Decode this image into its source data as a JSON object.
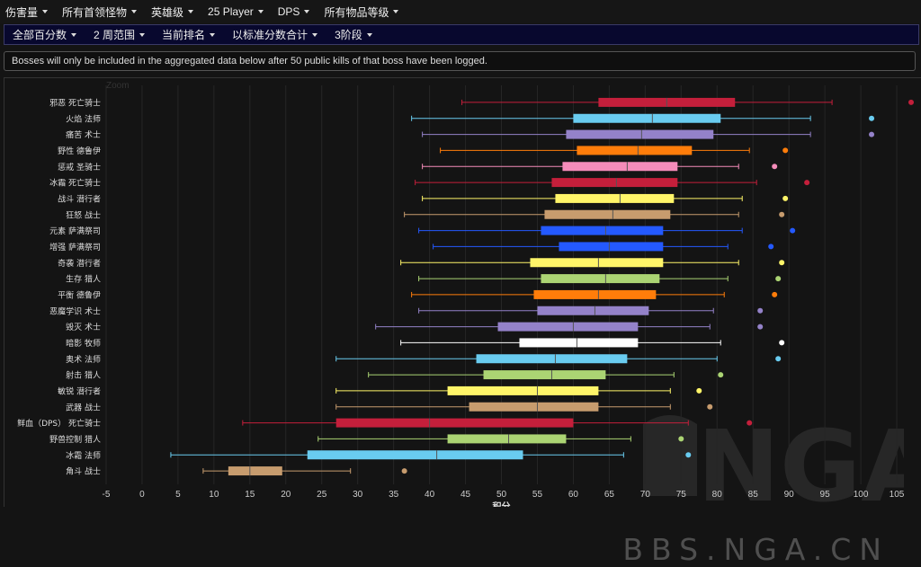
{
  "top_menu": [
    {
      "label": "伤害量"
    },
    {
      "label": "所有首领怪物"
    },
    {
      "label": "英雄级"
    },
    {
      "label": "25 Player"
    },
    {
      "label": "DPS"
    },
    {
      "label": "所有物品等级"
    }
  ],
  "sub_menu": [
    {
      "label": "全部百分数"
    },
    {
      "label": "2 周范围"
    },
    {
      "label": "当前排名"
    },
    {
      "label": "以标准分数合计"
    },
    {
      "label": "3阶段"
    }
  ],
  "notice": "Bosses will only be included in the aggregated data below after 50 public kills of that boss have been logged.",
  "zoom_label": "Zoom",
  "watermark": "BBS.NGA.CN",
  "logo_text": "NGA",
  "chart_data": {
    "type": "boxplot",
    "xlabel": "积分",
    "xlim": [
      -5,
      108
    ],
    "xticks": [
      -5,
      0,
      5,
      10,
      15,
      20,
      25,
      30,
      35,
      40,
      45,
      50,
      55,
      60,
      65,
      70,
      75,
      80,
      85,
      90,
      95,
      100,
      105
    ],
    "grid": true,
    "series": [
      {
        "name": "邪恶 死亡骑士",
        "color": "#c41f3b",
        "low": 44.5,
        "q1": 63.5,
        "median": 73,
        "q3": 82.5,
        "high": 96,
        "outlier": 107
      },
      {
        "name": "火焰 法师",
        "color": "#69ccf0",
        "low": 37.5,
        "q1": 60,
        "median": 71,
        "q3": 80.5,
        "high": 93,
        "outlier": 101.5
      },
      {
        "name": "痛苦 术士",
        "color": "#9482c9",
        "low": 39,
        "q1": 59,
        "median": 69.5,
        "q3": 79.5,
        "high": 93,
        "outlier": 101.5
      },
      {
        "name": "野性 德鲁伊",
        "color": "#ff7d0a",
        "low": 41.5,
        "q1": 60.5,
        "median": 69,
        "q3": 76.5,
        "high": 84.5,
        "outlier": 89.5
      },
      {
        "name": "惩戒 圣骑士",
        "color": "#f58cba",
        "low": 39,
        "q1": 58.5,
        "median": 67.5,
        "q3": 74.5,
        "high": 83,
        "outlier": 88
      },
      {
        "name": "冰霜 死亡骑士",
        "color": "#c41f3b",
        "low": 38,
        "q1": 57,
        "median": 66,
        "q3": 74.5,
        "high": 85.5,
        "outlier": 92.5
      },
      {
        "name": "战斗 潜行者",
        "color": "#fff569",
        "low": 39,
        "q1": 57.5,
        "median": 66.5,
        "q3": 74,
        "high": 83.5,
        "outlier": 89.5
      },
      {
        "name": "狂怒 战士",
        "color": "#c79c6e",
        "low": 36.5,
        "q1": 56,
        "median": 65.5,
        "q3": 73.5,
        "high": 83,
        "outlier": 89
      },
      {
        "name": "元素 萨满祭司",
        "color": "#2459ff",
        "low": 38.5,
        "q1": 55.5,
        "median": 64.5,
        "q3": 72.5,
        "high": 83.5,
        "outlier": 90.5
      },
      {
        "name": "增强 萨满祭司",
        "color": "#2459ff",
        "low": 40.5,
        "q1": 58,
        "median": 65,
        "q3": 72.5,
        "high": 81.5,
        "outlier": 87.5
      },
      {
        "name": "奇袭 潜行者",
        "color": "#fff569",
        "low": 36,
        "q1": 54,
        "median": 63.5,
        "q3": 72.5,
        "high": 83,
        "outlier": 89
      },
      {
        "name": "生存 猎人",
        "color": "#abd473",
        "low": 38.5,
        "q1": 55.5,
        "median": 64.5,
        "q3": 72,
        "high": 81.5,
        "outlier": 88.5
      },
      {
        "name": "平衡 德鲁伊",
        "color": "#ff7d0a",
        "low": 37.5,
        "q1": 54.5,
        "median": 63.5,
        "q3": 71.5,
        "high": 81,
        "outlier": 88
      },
      {
        "name": "恶魔学识 术士",
        "color": "#9482c9",
        "low": 38.5,
        "q1": 55,
        "median": 63,
        "q3": 70.5,
        "high": 79.5,
        "outlier": 86
      },
      {
        "name": "毁灭 术士",
        "color": "#9482c9",
        "low": 32.5,
        "q1": 49.5,
        "median": 60,
        "q3": 69,
        "high": 79,
        "outlier": 86
      },
      {
        "name": "暗影 牧师",
        "color": "#ffffff",
        "low": 36,
        "q1": 52.5,
        "median": 60.5,
        "q3": 69,
        "high": 80.5,
        "outlier": 89
      },
      {
        "name": "奥术 法师",
        "color": "#69ccf0",
        "low": 27,
        "q1": 46.5,
        "median": 57.5,
        "q3": 67.5,
        "high": 80,
        "outlier": 88.5
      },
      {
        "name": "射击 猎人",
        "color": "#abd473",
        "low": 31.5,
        "q1": 47.5,
        "median": 57,
        "q3": 64.5,
        "high": 74,
        "outlier": 80.5
      },
      {
        "name": "敏锐 潜行者",
        "color": "#fff569",
        "low": 27,
        "q1": 42.5,
        "median": 55,
        "q3": 63.5,
        "high": 73.5,
        "outlier": 77.5
      },
      {
        "name": "武器 战士",
        "color": "#c79c6e",
        "low": 27,
        "q1": 45.5,
        "median": 55,
        "q3": 63.5,
        "high": 73.5,
        "outlier": 79
      },
      {
        "name": "鲜血（DPS） 死亡骑士",
        "color": "#c41f3b",
        "low": 14,
        "q1": 27,
        "median": 40,
        "q3": 60,
        "high": 76,
        "outlier": 84.5
      },
      {
        "name": "野兽控制 猎人",
        "color": "#abd473",
        "low": 24.5,
        "q1": 42.5,
        "median": 51,
        "q3": 59,
        "high": 68,
        "outlier": 75
      },
      {
        "name": "冰霜 法师",
        "color": "#69ccf0",
        "low": 4,
        "q1": 23,
        "median": 41,
        "q3": 53,
        "high": 67,
        "outlier": 76
      },
      {
        "name": "角斗 战士",
        "color": "#c79c6e",
        "low": 8.5,
        "q1": 12,
        "median": 15,
        "q3": 19.5,
        "high": 29,
        "outlier": 36.5
      }
    ]
  }
}
